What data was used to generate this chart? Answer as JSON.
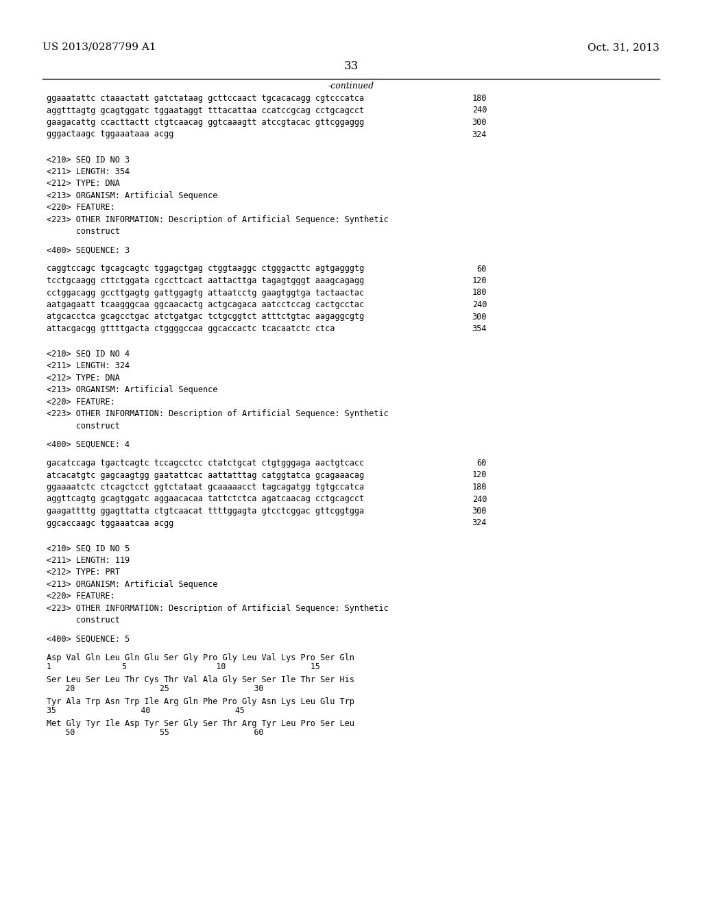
{
  "patent_number": "US 2013/0287799 A1",
  "date": "Oct. 31, 2013",
  "page_number": "33",
  "continued_label": "-continued",
  "background_color": "#ffffff",
  "text_color": "#000000",
  "lines": [
    {
      "text": "ggaaatattc ctaaactatt gatctataag gcttccaact tgcacacagg cgtcccatca",
      "number": "180",
      "type": "sequence"
    },
    {
      "text": "aggtttagtg gcagtggatc tggaataggt tttacattaa ccatccgcag cctgcagcct",
      "number": "240",
      "type": "sequence"
    },
    {
      "text": "gaagacattg ccacttactt ctgtcaacag ggtcaaagtt atccgtacac gttcggaggg",
      "number": "300",
      "type": "sequence"
    },
    {
      "text": "gggactaagc tggaaataaa acgg",
      "number": "324",
      "type": "sequence"
    },
    {
      "text": "",
      "type": "blank2"
    },
    {
      "text": "<210> SEQ ID NO 3",
      "type": "meta"
    },
    {
      "text": "<211> LENGTH: 354",
      "type": "meta"
    },
    {
      "text": "<212> TYPE: DNA",
      "type": "meta"
    },
    {
      "text": "<213> ORGANISM: Artificial Sequence",
      "type": "meta"
    },
    {
      "text": "<220> FEATURE:",
      "type": "meta"
    },
    {
      "text": "<223> OTHER INFORMATION: Description of Artificial Sequence: Synthetic",
      "type": "meta"
    },
    {
      "text": "      construct",
      "type": "meta"
    },
    {
      "text": "",
      "type": "blank1"
    },
    {
      "text": "<400> SEQUENCE: 3",
      "type": "meta"
    },
    {
      "text": "",
      "type": "blank1"
    },
    {
      "text": "caggtccagc tgcagcagtc tggagctgag ctggtaaggc ctgggacttc agtgagggtg",
      "number": "60",
      "type": "sequence"
    },
    {
      "text": "tcctgcaagg cttctggata cgccttcact aattacttga tagagtgggt aaagcagagg",
      "number": "120",
      "type": "sequence"
    },
    {
      "text": "cctggacagg gccttgagtg gattggagtg attaatcctg gaagtggtga tactaactac",
      "number": "180",
      "type": "sequence"
    },
    {
      "text": "aatgagaatt tcaagggcaa ggcaacactg actgcagaca aatcctccag cactgcctac",
      "number": "240",
      "type": "sequence"
    },
    {
      "text": "atgcacctca gcagcctgac atctgatgac tctgcggtct atttctgtac aagaggcgtg",
      "number": "300",
      "type": "sequence"
    },
    {
      "text": "attacgacgg gttttgacta ctggggccaa ggcaccactc tcacaatctc ctca",
      "number": "354",
      "type": "sequence"
    },
    {
      "text": "",
      "type": "blank2"
    },
    {
      "text": "<210> SEQ ID NO 4",
      "type": "meta"
    },
    {
      "text": "<211> LENGTH: 324",
      "type": "meta"
    },
    {
      "text": "<212> TYPE: DNA",
      "type": "meta"
    },
    {
      "text": "<213> ORGANISM: Artificial Sequence",
      "type": "meta"
    },
    {
      "text": "<220> FEATURE:",
      "type": "meta"
    },
    {
      "text": "<223> OTHER INFORMATION: Description of Artificial Sequence: Synthetic",
      "type": "meta"
    },
    {
      "text": "      construct",
      "type": "meta"
    },
    {
      "text": "",
      "type": "blank1"
    },
    {
      "text": "<400> SEQUENCE: 4",
      "type": "meta"
    },
    {
      "text": "",
      "type": "blank1"
    },
    {
      "text": "gacatccaga tgactcagtc tccagcctcc ctatctgcat ctgtgggaga aactgtcacc",
      "number": "60",
      "type": "sequence"
    },
    {
      "text": "atcacatgtc gagcaagtgg gaatattcac aattatttag catggtatca gcagaaacag",
      "number": "120",
      "type": "sequence"
    },
    {
      "text": "ggaaaatctc ctcagctcct ggtctataat gcaaaaacct tagcagatgg tgtgccatca",
      "number": "180",
      "type": "sequence"
    },
    {
      "text": "aggttcagtg gcagtggatc aggaacacaa tattctctca agatcaacag cctgcagcct",
      "number": "240",
      "type": "sequence"
    },
    {
      "text": "gaagattttg ggagttatta ctgtcaacat ttttggagta gtcctcggac gttcggtgga",
      "number": "300",
      "type": "sequence"
    },
    {
      "text": "ggcaccaagc tggaaatcaa acgg",
      "number": "324",
      "type": "sequence"
    },
    {
      "text": "",
      "type": "blank2"
    },
    {
      "text": "<210> SEQ ID NO 5",
      "type": "meta"
    },
    {
      "text": "<211> LENGTH: 119",
      "type": "meta"
    },
    {
      "text": "<212> TYPE: PRT",
      "type": "meta"
    },
    {
      "text": "<213> ORGANISM: Artificial Sequence",
      "type": "meta"
    },
    {
      "text": "<220> FEATURE:",
      "type": "meta"
    },
    {
      "text": "<223> OTHER INFORMATION: Description of Artificial Sequence: Synthetic",
      "type": "meta"
    },
    {
      "text": "      construct",
      "type": "meta"
    },
    {
      "text": "",
      "type": "blank1"
    },
    {
      "text": "<400> SEQUENCE: 5",
      "type": "meta"
    },
    {
      "text": "",
      "type": "blank1"
    },
    {
      "text": "Asp Val Gln Leu Gln Glu Ser Gly Pro Gly Leu Val Lys Pro Ser Gln",
      "type": "aa_seq"
    },
    {
      "text": "1               5                   10                  15",
      "type": "aa_num"
    },
    {
      "text": "Ser Leu Ser Leu Thr Cys Thr Val Ala Gly Ser Ser Ile Thr Ser His",
      "type": "aa_seq"
    },
    {
      "text": "    20                  25                  30",
      "type": "aa_num"
    },
    {
      "text": "Tyr Ala Trp Asn Trp Ile Arg Gln Phe Pro Gly Asn Lys Leu Glu Trp",
      "type": "aa_seq"
    },
    {
      "text": "35                  40                  45",
      "type": "aa_num"
    },
    {
      "text": "Met Gly Tyr Ile Asp Tyr Ser Gly Ser Thr Arg Tyr Leu Pro Ser Leu",
      "type": "aa_seq"
    },
    {
      "text": "    50                  55                  60",
      "type": "aa_num"
    }
  ]
}
